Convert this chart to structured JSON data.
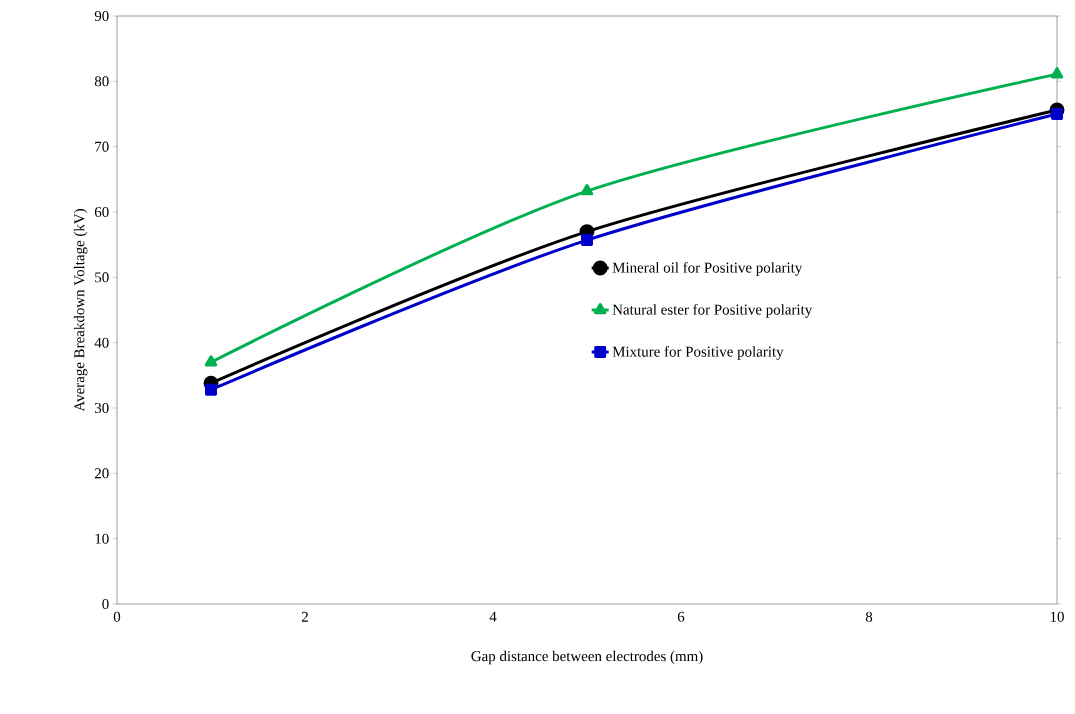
{
  "chart_data": {
    "type": "line",
    "xlabel": "Gap distance between electrodes (mm)",
    "ylabel": "Average Breakdown Voltage (kV)",
    "xlim": [
      0,
      10
    ],
    "ylim": [
      0,
      90
    ],
    "xticks": [
      0,
      2,
      4,
      6,
      8,
      10
    ],
    "yticks": [
      0,
      10,
      20,
      30,
      40,
      50,
      60,
      70,
      80,
      90
    ],
    "x": [
      1,
      5,
      10
    ],
    "grid": false,
    "legend": "right",
    "series": [
      {
        "name": "Mineral oil for Positive polarity",
        "color": "#000000",
        "marker": "circle",
        "values": [
          33.8,
          57.0,
          75.6
        ]
      },
      {
        "name": "Natural ester for Positive polarity",
        "color": "#00b050",
        "marker": "triangle",
        "values": [
          37.0,
          63.2,
          81.1
        ]
      },
      {
        "name": "Mixture for Positive polarity",
        "color": "#0000cc",
        "marker": "square",
        "values": [
          32.8,
          55.7,
          75.0
        ]
      }
    ]
  }
}
